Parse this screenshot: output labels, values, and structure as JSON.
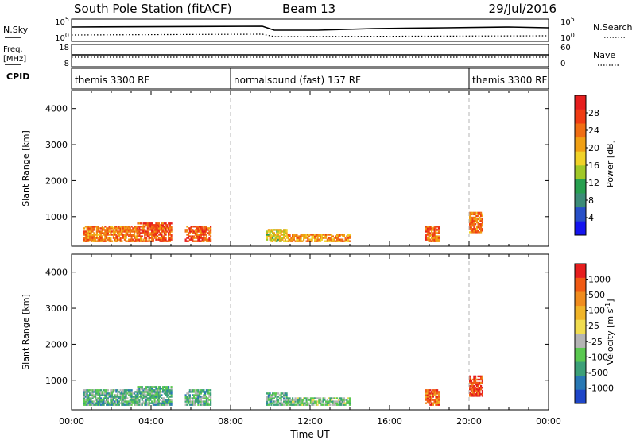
{
  "header": {
    "station": "South Pole Station (fitACF)",
    "beam": "Beam 13",
    "date": "29/Jul/2016"
  },
  "top_panels": {
    "nsky": {
      "label": "N.Sky",
      "tick_top": "10^5",
      "tick_bottom": "10^0"
    },
    "nsearch": {
      "label": "N.Search",
      "tick_top": "10^5",
      "tick_bottom": "10^0"
    },
    "freq": {
      "label_line1": "Freq.",
      "label_line2": "[MHz]",
      "tick_top": "18",
      "tick_bottom": "8"
    },
    "nave": {
      "label": "Nave",
      "tick_top": "60",
      "tick_bottom": "0"
    },
    "cpid": {
      "label": "CPID",
      "segments": [
        {
          "label": "themis 3300 RF",
          "start_h": 0,
          "end_h": 8
        },
        {
          "label": "normalsound (fast) 157 RF",
          "start_h": 8,
          "end_h": 20
        },
        {
          "label": "themis 3300 RF",
          "start_h": 20,
          "end_h": 24
        }
      ]
    }
  },
  "chart_data": [
    {
      "type": "heatmap",
      "title": "",
      "xlabel": "",
      "ylabel": "Slant Range [km]",
      "xlim": [
        0,
        24
      ],
      "ylim": [
        180,
        4500
      ],
      "yticks": [
        1000,
        2000,
        3000,
        4000
      ],
      "colorbar": {
        "label": "Power [dB]",
        "ticks": [
          "4",
          "8",
          "12",
          "16",
          "20",
          "24",
          "28"
        ],
        "colors": [
          "#1414f0",
          "#2850c8",
          "#3c8c78",
          "#28a050",
          "#a0c828",
          "#f0d228",
          "#f0a014",
          "#f06e14",
          "#f03c14",
          "#e61e1e"
        ]
      },
      "echo_regions": [
        {
          "t0": 0.6,
          "t1": 3.3,
          "r_lo": 300,
          "r_hi": 720,
          "value_level": 0.75
        },
        {
          "t0": 3.3,
          "t1": 5.0,
          "r_lo": 300,
          "r_hi": 800,
          "value_level": 0.85
        },
        {
          "t0": 5.7,
          "t1": 7.0,
          "r_lo": 300,
          "r_hi": 750,
          "value_level": 0.85
        },
        {
          "t0": 9.8,
          "t1": 10.8,
          "r_lo": 300,
          "r_hi": 650,
          "value_level": 0.55
        },
        {
          "t0": 10.8,
          "t1": 14.0,
          "r_lo": 300,
          "r_hi": 500,
          "value_level": 0.7
        },
        {
          "t0": 17.8,
          "t1": 18.5,
          "r_lo": 300,
          "r_hi": 750,
          "value_level": 0.8
        },
        {
          "t0": 20.0,
          "t1": 20.7,
          "r_lo": 550,
          "r_hi": 1100,
          "value_level": 0.75
        }
      ]
    },
    {
      "type": "heatmap",
      "title": "",
      "xlabel": "Time UT",
      "ylabel": "Slant Range [km]",
      "xlim": [
        0,
        24
      ],
      "ylim": [
        180,
        4500
      ],
      "yticks": [
        1000,
        2000,
        3000,
        4000
      ],
      "xticks": [
        "00:00",
        "04:00",
        "08:00",
        "12:00",
        "16:00",
        "20:00",
        "00:00"
      ],
      "colorbar": {
        "label": "Velocity [m s^-1]",
        "ticks": [
          "1000",
          "500",
          "100",
          "25",
          "-25",
          "-100",
          "-500",
          "-1000"
        ],
        "colors": [
          "#1e46c8",
          "#2878b4",
          "#3ca078",
          "#5ac850",
          "#b4b4b4",
          "#f0dc50",
          "#f0b428",
          "#f08c1e",
          "#f05a14",
          "#e61e1e"
        ]
      },
      "echo_regions": [
        {
          "t0": 0.6,
          "t1": 3.3,
          "r_lo": 300,
          "r_hi": 720,
          "value_level": 0.3
        },
        {
          "t0": 3.3,
          "t1": 5.0,
          "r_lo": 300,
          "r_hi": 800,
          "value_level": 0.3
        },
        {
          "t0": 5.7,
          "t1": 7.0,
          "r_lo": 300,
          "r_hi": 750,
          "value_level": 0.3
        },
        {
          "t0": 9.8,
          "t1": 10.8,
          "r_lo": 300,
          "r_hi": 650,
          "value_level": 0.3
        },
        {
          "t0": 10.8,
          "t1": 14.0,
          "r_lo": 300,
          "r_hi": 500,
          "value_level": 0.35
        },
        {
          "t0": 17.8,
          "t1": 18.5,
          "r_lo": 300,
          "r_hi": 750,
          "value_level": 0.85
        },
        {
          "t0": 20.0,
          "t1": 20.7,
          "r_lo": 550,
          "r_hi": 1100,
          "value_level": 0.95
        }
      ]
    }
  ],
  "colors": {
    "axis": "#000000",
    "mode_change_line": "#b4b4b4"
  }
}
